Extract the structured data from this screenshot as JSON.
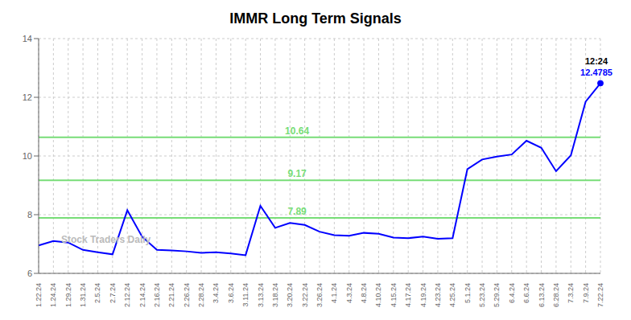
{
  "chart_data": {
    "type": "line",
    "title": "IMMR Long Term Signals",
    "categories": [
      "1.22.24",
      "1.24.24",
      "1.29.24",
      "1.31.24",
      "2.5.24",
      "2.7.24",
      "2.12.24",
      "2.14.24",
      "2.16.24",
      "2.21.24",
      "2.26.24",
      "2.28.24",
      "3.4.24",
      "3.6.24",
      "3.11.24",
      "3.13.24",
      "3.18.24",
      "3.20.24",
      "3.22.24",
      "3.26.24",
      "4.1.24",
      "4.3.24",
      "4.8.24",
      "4.10.24",
      "4.15.24",
      "4.17.24",
      "4.19.24",
      "4.23.24",
      "4.25.24",
      "5.1.24",
      "5.23.24",
      "5.29.24",
      "6.4.24",
      "6.6.24",
      "6.13.24",
      "6.28.24",
      "7.3.24",
      "7.9.24",
      "7.22.24"
    ],
    "values": [
      6.95,
      7.1,
      7.05,
      6.8,
      6.72,
      6.65,
      8.15,
      7.25,
      6.8,
      6.78,
      6.75,
      6.7,
      6.72,
      6.68,
      6.62,
      8.3,
      7.55,
      7.72,
      7.65,
      7.42,
      7.3,
      7.28,
      7.38,
      7.35,
      7.22,
      7.2,
      7.25,
      7.18,
      7.2,
      9.55,
      9.88,
      9.98,
      10.05,
      10.52,
      10.28,
      9.48,
      10.02,
      11.85,
      12.4785
    ],
    "color": "blue",
    "ylim": [
      6.0,
      14.0
    ],
    "yticks": [
      6,
      8,
      10,
      12,
      14
    ],
    "grid": true,
    "hlines": [
      {
        "value": 7.89,
        "label": "7.89",
        "color": "#77dd77"
      },
      {
        "value": 9.17,
        "label": "9.17",
        "color": "#77dd77"
      },
      {
        "value": 10.64,
        "label": "10.64",
        "color": "#77dd77"
      }
    ],
    "annotations": [
      {
        "text": "12:24",
        "color": "black"
      },
      {
        "text": "12.4785",
        "color": "blue"
      },
      {
        "text": "Stock Traders Daily",
        "color": "#bbbbbb"
      }
    ]
  }
}
